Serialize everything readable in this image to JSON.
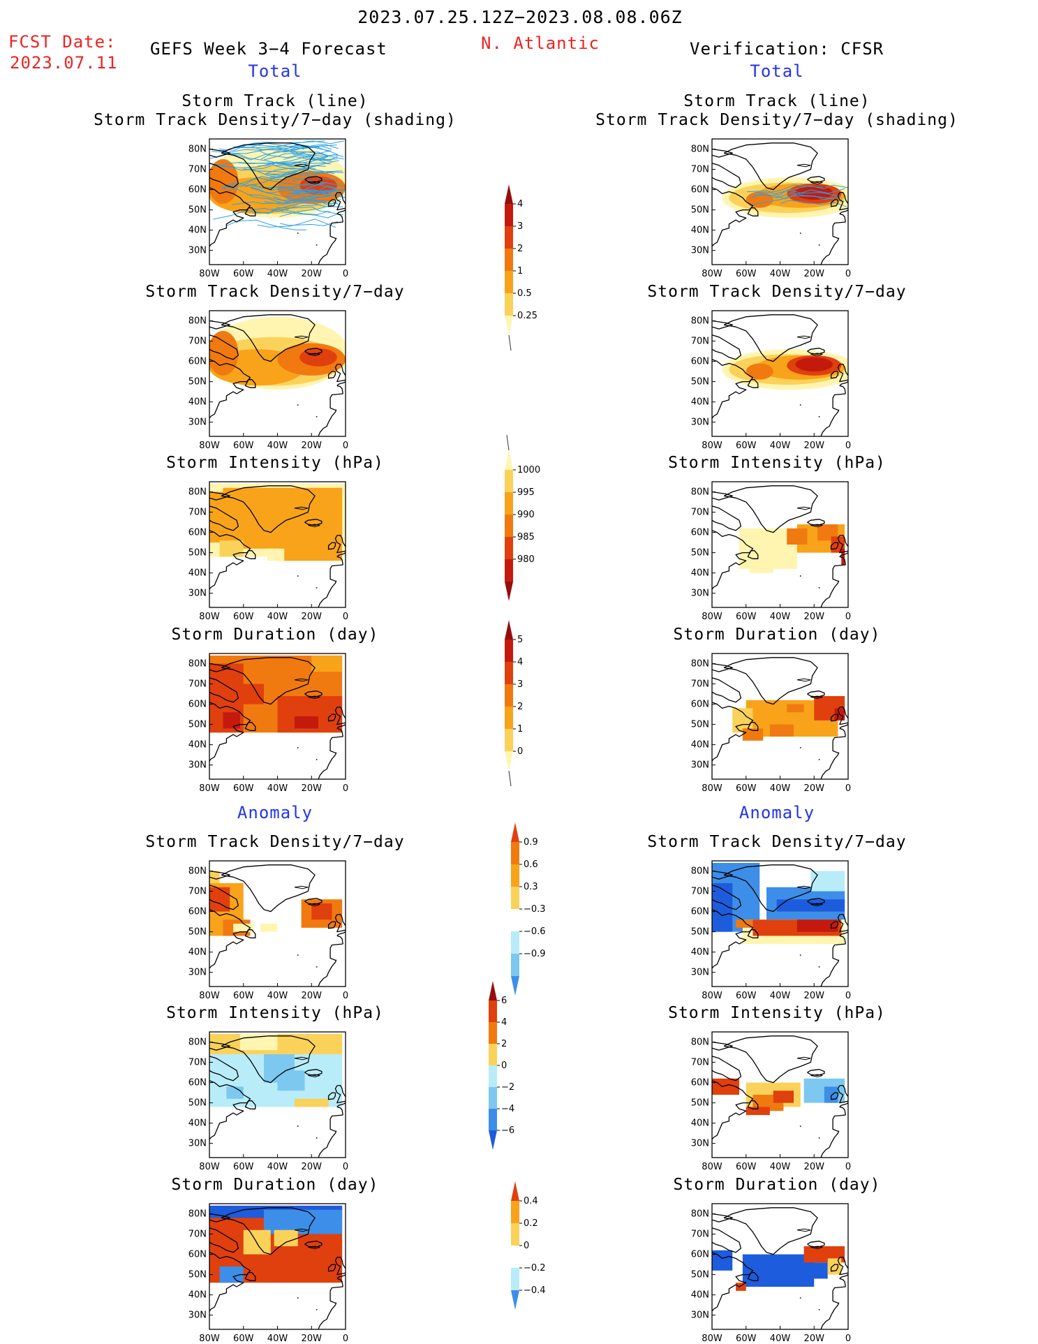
{
  "header": {
    "period": "2023.07.25.12Z−2023.08.08.06Z",
    "fcst_label": "FCST Date:",
    "fcst_date": "2023.07.11",
    "left_title": "GEFS Week 3−4 Forecast",
    "region": "N. Atlantic",
    "right_title": "Verification: CFSR"
  },
  "sections": {
    "total": "Total",
    "anomaly": "Anomaly"
  },
  "axes": {
    "lat_labels": [
      "80N",
      "70N",
      "60N",
      "50N",
      "40N",
      "30N"
    ],
    "lon_labels": [
      "80W",
      "60W",
      "40W",
      "20W",
      "0"
    ]
  },
  "panel_titles": {
    "track_line": "Storm Track (line)",
    "track_shading": "Storm Track Density/7−day (shading)",
    "density": "Storm Track Density/7−day",
    "intensity": "Storm Intensity (hPa)",
    "duration": "Storm Duration (day)"
  },
  "colorbars": {
    "density_total": [
      "4",
      "3",
      "2",
      "1",
      "0.5",
      "0.25"
    ],
    "intensity_total": [
      "1000",
      "995",
      "990",
      "985",
      "980"
    ],
    "duration_total": [
      "5",
      "4",
      "3",
      "2",
      "1",
      "0"
    ],
    "density_anomaly": [
      "0.9",
      "0.6",
      "0.3",
      "−0.3",
      "−0.6",
      "−0.9"
    ],
    "intensity_anomaly": [
      "6",
      "4",
      "2",
      "0",
      "−2",
      "−4",
      "−6"
    ],
    "duration_anomaly": [
      "0.4",
      "0.2",
      "0",
      "−0.2",
      "−0.4"
    ]
  },
  "colors": {
    "warm": [
      "#fff5b0",
      "#fad25a",
      "#f8a31a",
      "#f07a10",
      "#e0400d",
      "#c41a0d",
      "#960d0d"
    ],
    "cool": [
      "#b8ecf8",
      "#7cc8f0",
      "#3d8ee8",
      "#1d5cdc"
    ],
    "track_line": "#2aa0e8",
    "header_red": "#ee2222",
    "header_blue": "#2233ee"
  }
}
